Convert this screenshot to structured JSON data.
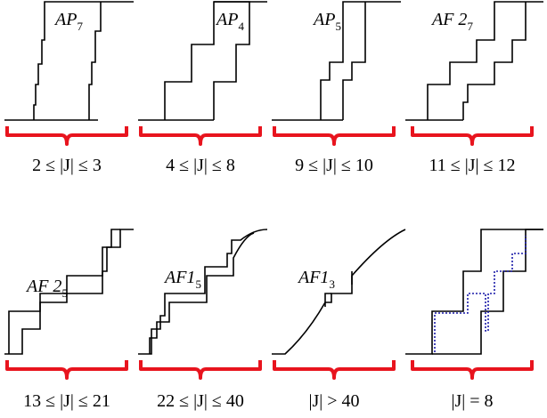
{
  "panels": [
    {
      "curve_label": {
        "main": "AP",
        "sub": "7"
      },
      "range": "2 ≤ |J| ≤ 3"
    },
    {
      "curve_label": {
        "main": "AP",
        "sub": "4"
      },
      "range": "4 ≤ |J| ≤ 8"
    },
    {
      "curve_label": {
        "main": "AP",
        "sub": "5"
      },
      "range": "9 ≤ |J| ≤ 10"
    },
    {
      "curve_label": {
        "main": "AF 2",
        "sub": "7"
      },
      "range": "11 ≤ |J| ≤ 12"
    },
    {
      "curve_label": {
        "main": "AF 2",
        "sub": "5"
      },
      "range": "13 ≤ |J| ≤ 21"
    },
    {
      "curve_label": {
        "main": "AF1",
        "sub": "5"
      },
      "range": "22 ≤ |J| ≤ 40"
    },
    {
      "curve_label": {
        "main": "AF1",
        "sub": "3"
      },
      "range": "|J| > 40"
    },
    {
      "range": "|J| = 8"
    }
  ]
}
